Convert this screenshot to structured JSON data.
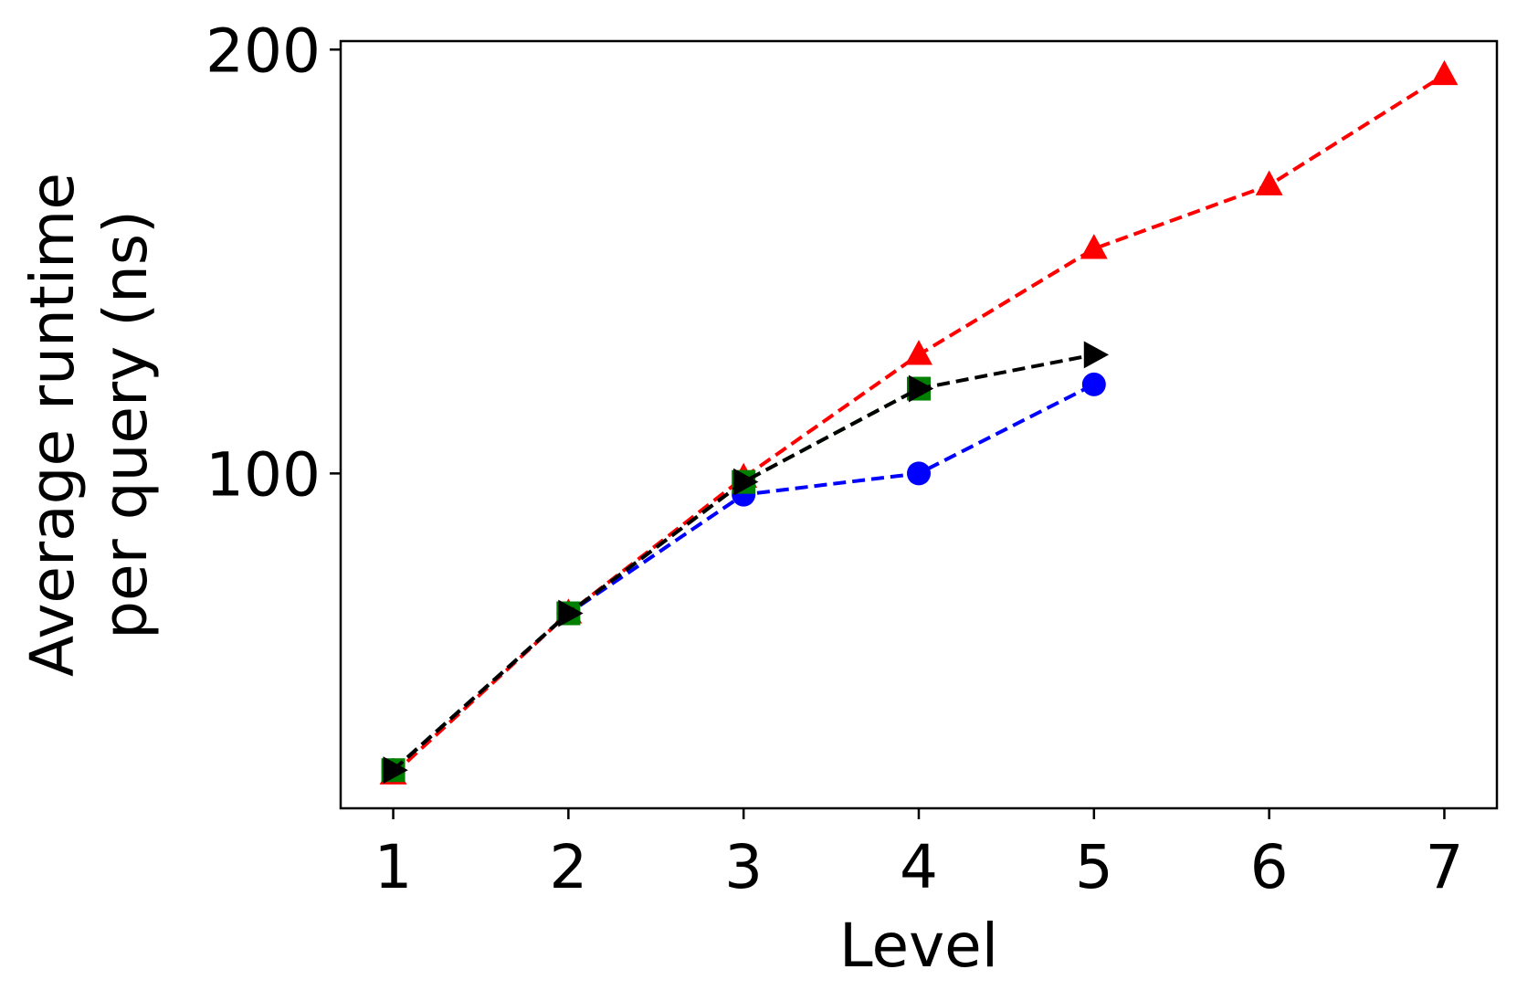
{
  "chart_data": {
    "type": "line",
    "xlabel": "Level",
    "ylabel_lines": [
      "Average runtime",
      "per query (ns)"
    ],
    "x_ticks": [
      1,
      2,
      3,
      4,
      5,
      6,
      7
    ],
    "y_ticks": [
      100,
      200
    ],
    "xlim": [
      0.7,
      7.3
    ],
    "ylim": [
      21,
      202
    ],
    "grid": false,
    "series": [
      {
        "color": "#ff0000",
        "marker": "triangle-up",
        "linestyle": "dashed",
        "points": [
          [
            1,
            29
          ],
          [
            2,
            67
          ],
          [
            3,
            99
          ],
          [
            4,
            128
          ],
          [
            5,
            153
          ],
          [
            6,
            168
          ],
          [
            7,
            194
          ]
        ]
      },
      {
        "color": "#0000ff",
        "marker": "circle",
        "linestyle": "dashed",
        "points": [
          [
            1,
            30
          ],
          [
            2,
            67
          ],
          [
            3,
            95
          ],
          [
            4,
            100
          ],
          [
            5,
            121
          ]
        ]
      },
      {
        "color": "#008000",
        "marker": "square",
        "linestyle": "dashed",
        "points": [
          [
            1,
            30
          ],
          [
            2,
            67
          ],
          [
            3,
            98
          ],
          [
            4,
            120
          ]
        ]
      },
      {
        "color": "#000000",
        "marker": "triangle-right",
        "linestyle": "dashed",
        "points": [
          [
            1,
            30
          ],
          [
            2,
            67
          ],
          [
            3,
            98
          ],
          [
            4,
            120
          ],
          [
            5,
            128
          ]
        ]
      }
    ]
  }
}
